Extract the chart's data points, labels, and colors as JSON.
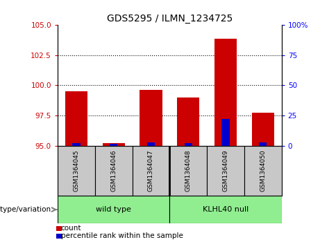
{
  "title": "GDS5295 / ILMN_1234725",
  "samples": [
    "GSM1364045",
    "GSM1364046",
    "GSM1364047",
    "GSM1364048",
    "GSM1364049",
    "GSM1364050"
  ],
  "count_values": [
    99.5,
    95.18,
    99.62,
    99.0,
    103.85,
    97.72
  ],
  "percentile_values": [
    2.0,
    1.5,
    2.5,
    2.0,
    22.0,
    2.5
  ],
  "ylim_left": [
    95,
    105
  ],
  "ylim_right": [
    0,
    100
  ],
  "yticks_left": [
    95,
    97.5,
    100,
    102.5,
    105
  ],
  "yticks_right": [
    0,
    25,
    50,
    75,
    100
  ],
  "bar_base": 95,
  "bar_width": 0.6,
  "red_color": "#cc0000",
  "blue_color": "#0000cc",
  "bg_color": "#ffffff",
  "sample_bg": "#c8c8c8",
  "green_color": "#90ee90",
  "genotype_label": "genotype/variation",
  "wild_type_label": "wild type",
  "klhl40_label": "KLHL40 null",
  "legend_count": "count",
  "legend_percentile": "percentile rank within the sample",
  "title_fontsize": 10,
  "tick_fontsize": 7.5,
  "sample_fontsize": 6.5,
  "legend_fontsize": 7.5,
  "n_wild": 3,
  "n_klhl": 3
}
